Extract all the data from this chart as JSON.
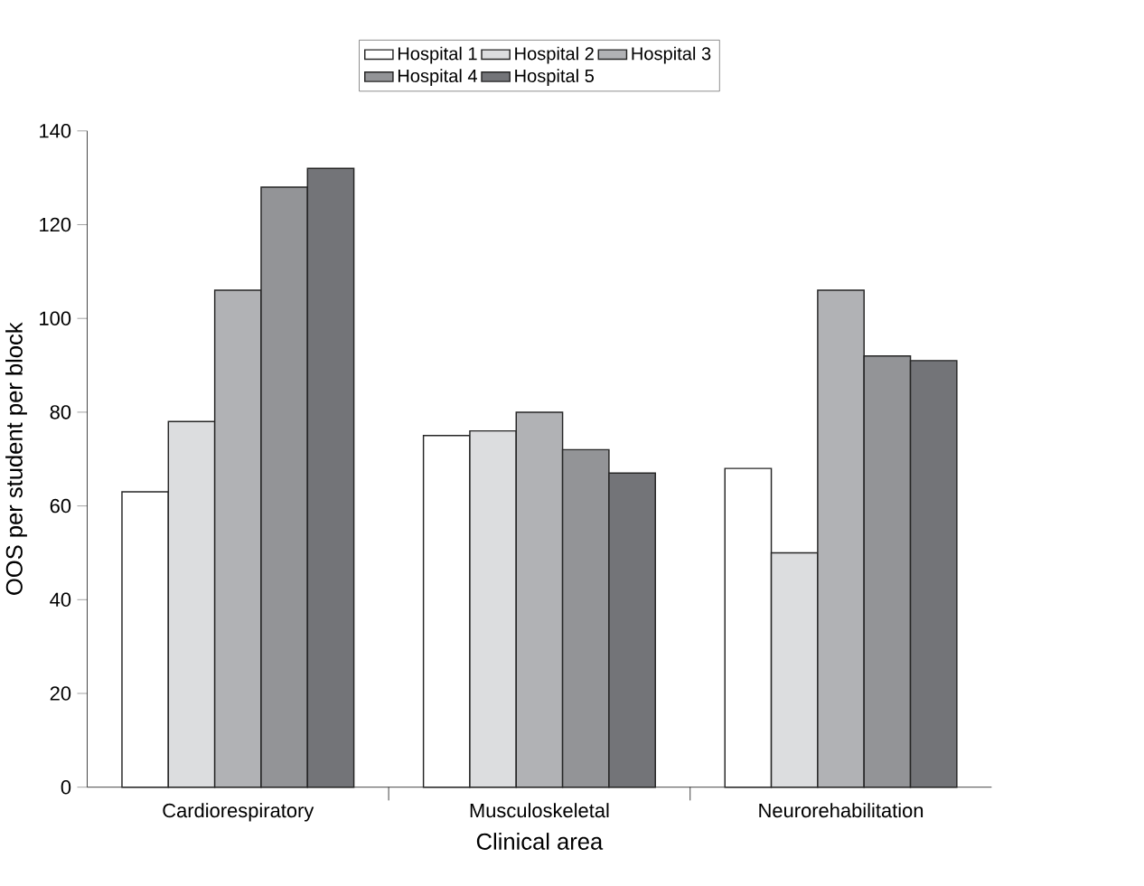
{
  "chart_data": {
    "type": "bar",
    "xlabel": "Clinical area",
    "ylabel": "OOS per student per block",
    "categories": [
      "Cardiorespiratory",
      "Musculoskeletal",
      "Neurorehabilitation"
    ],
    "series": [
      {
        "name": "Hospital 1",
        "color": "#ffffff",
        "values": [
          63,
          75,
          68
        ]
      },
      {
        "name": "Hospital 2",
        "color": "#dcdddf",
        "values": [
          78,
          76,
          50
        ]
      },
      {
        "name": "Hospital 3",
        "color": "#b1b2b5",
        "values": [
          106,
          80,
          106
        ]
      },
      {
        "name": "Hospital 4",
        "color": "#939497",
        "values": [
          128,
          72,
          92
        ]
      },
      {
        "name": "Hospital 5",
        "color": "#737478",
        "values": [
          132,
          67,
          91
        ]
      }
    ],
    "ylim": [
      0,
      140
    ],
    "yticks": [
      0,
      20,
      40,
      60,
      80,
      100,
      120,
      140
    ],
    "grid": false,
    "legend": "top"
  }
}
